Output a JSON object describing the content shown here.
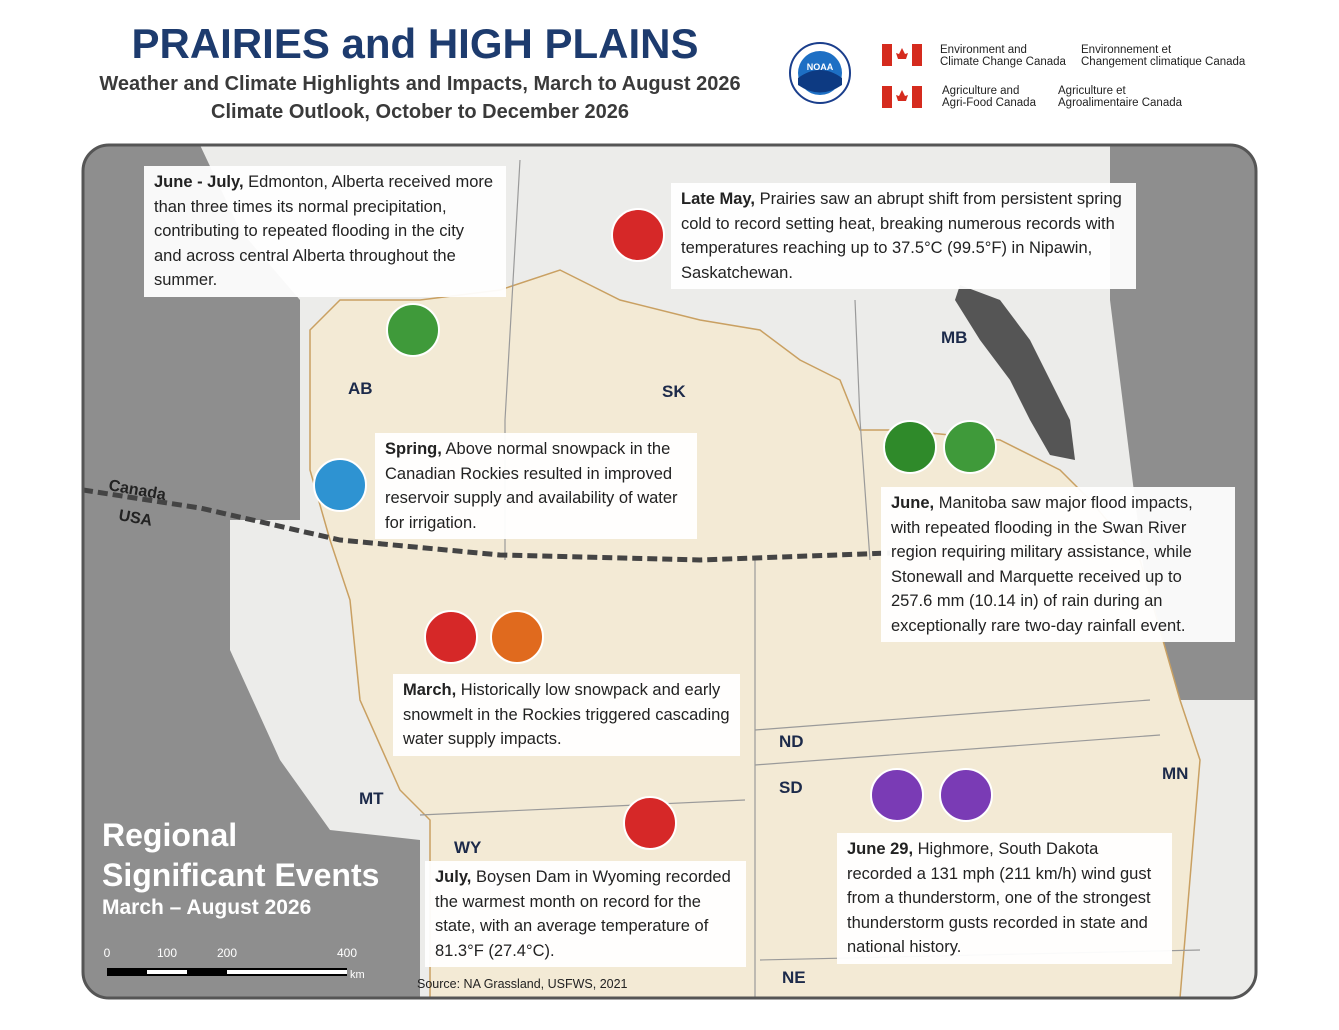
{
  "header": {
    "title": "PRAIRIES and HIGH PLAINS",
    "subtitle": "Weather and Climate Highlights and Impacts, March to August 2026",
    "outlook": "Climate Outlook, October to December 2026"
  },
  "logos": {
    "noaa": "NOAA",
    "eccc_en": [
      "Environment and",
      "Climate Change Canada"
    ],
    "eccc_fr": [
      "Environnement et",
      "Changement climatique Canada"
    ],
    "aafc_en": [
      "Agriculture and",
      "Agri-Food Canada"
    ],
    "aafc_fr": [
      "Agriculture et",
      "Agroalimentaire Canada"
    ]
  },
  "callouts": [
    {
      "lead": "June - July,",
      "text": "Edmonton, Alberta received more than three times its normal precipitation, contributing to repeated flooding in the city and across central Alberta throughout the summer."
    },
    {
      "lead": "Late May,",
      "text": "Prairies saw an abrupt shift from persistent spring cold to record setting heat, breaking numerous records with temperatures reaching up to 37.5°C (99.5°F) in Nipawin, Saskatchewan."
    },
    {
      "lead": "Spring,",
      "text": "Above normal snowpack in the Canadian Rockies resulted in improved reservoir supply and availability of water for irrigation."
    },
    {
      "lead": "June,",
      "text": "Manitoba saw major flood impacts, with repeated flooding in the Swan River region requiring military assistance, while Stonewall and Marquette received up to 257.6 mm (10.14 in) of rain during an exceptionally rare two-day rainfall event."
    },
    {
      "lead": "March,",
      "text": "Historically low snowpack and early snowmelt in the Rockies triggered cascading water supply impacts."
    },
    {
      "lead": "July,",
      "text": "Boysen Dam in Wyoming recorded the warmest month on record for the state, with an average temperature of 81.3°F (27.4°C)."
    },
    {
      "lead": "June 29,",
      "text": "Highmore, South Dakota recorded a 131 mph (211 km/h) wind gust from a thunderstorm, one of the strongest thunderstorm gusts recorded in state and national history."
    }
  ],
  "regions": [
    "AB",
    "SK",
    "MB",
    "ND",
    "SD",
    "MN",
    "MT",
    "WY",
    "NE"
  ],
  "border": [
    "Canada",
    "USA"
  ],
  "legend": {
    "line1": "Regional",
    "line2": "Significant Events",
    "period": "March – August 2026"
  },
  "scale": {
    "ticks": [
      0,
      100,
      200,
      400
    ],
    "unit": "km"
  },
  "source": "Source: NA Grassland, USFWS, 2021"
}
